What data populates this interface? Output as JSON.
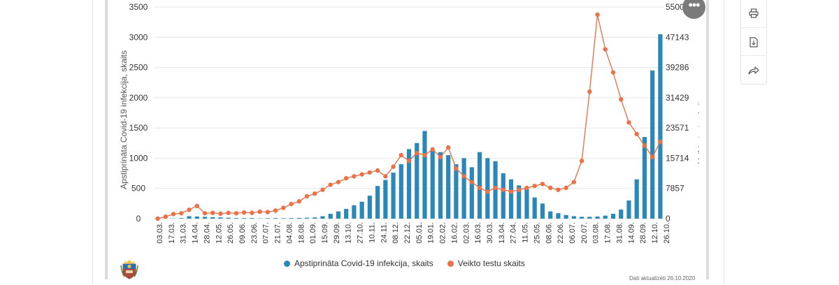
{
  "colors": {
    "bars": "#2b87b8",
    "tests": "#e8734a",
    "grid": "#e6e6e6",
    "axis_text": "#333333"
  },
  "toolbar": {
    "more_icon": "ellipsis-icon",
    "more_label": "•••",
    "items": [
      {
        "name": "print",
        "icon": "printer-icon"
      },
      {
        "name": "download",
        "icon": "download-file-icon"
      },
      {
        "name": "share",
        "icon": "share-arrow-icon"
      }
    ]
  },
  "footer_note": "Dati aktualizēti 26.10.2020",
  "chart_data": {
    "type": "bar+line",
    "title": "",
    "xlabel": "",
    "ylabel_left": "Apstiprināta Covid-19 infekcija, skaits",
    "ylabel_right": "Veikto testu skaits",
    "ylim_left": [
      0,
      3500
    ],
    "ylim_right": [
      0,
      55000
    ],
    "yticks_left": [
      "0",
      "500",
      "1000",
      "1500",
      "2000",
      "2500",
      "3000",
      "3500"
    ],
    "yticks_right": [
      "0",
      "7857",
      "15714",
      "23571",
      "31429",
      "39286",
      "47143",
      "55000"
    ],
    "x_ticks": [
      "03.03.",
      "17.03.",
      "31.03.",
      "14.04.",
      "28.04.",
      "12.05.",
      "26.05.",
      "09.06.",
      "23.06.",
      "07.07.",
      "21.07.",
      "04.08.",
      "18.08.",
      "01.09.",
      "15.09.",
      "29.09.",
      "13.10.",
      "27.10.",
      "10.11.",
      "24.11.",
      "08.12.",
      "22.12.",
      "05.01.",
      "19.01.",
      "02.02.",
      "16.02.",
      "02.03.",
      "16.03.",
      "30.03.",
      "13.04.",
      "27.04.",
      "11.05.",
      "25.05.",
      "08.06.",
      "22.06.",
      "06.07.",
      "20.07.",
      "03.08.",
      "17.08.",
      "31.08.",
      "14.09.",
      "28.09.",
      "12.10.",
      "26.10."
    ],
    "series": [
      {
        "name": "Apstiprināta Covid-19 infekcija, skaits",
        "type": "bar",
        "axis": "left",
        "values": [
          0,
          0,
          5,
          10,
          40,
          35,
          30,
          25,
          20,
          15,
          10,
          10,
          10,
          5,
          8,
          10,
          8,
          10,
          12,
          15,
          20,
          40,
          80,
          120,
          160,
          220,
          280,
          380,
          540,
          640,
          760,
          900,
          1150,
          1250,
          1450,
          1150,
          1100,
          1050,
          900,
          1000,
          850,
          1100,
          1000,
          950,
          750,
          650,
          550,
          500,
          350,
          250,
          120,
          90,
          60,
          40,
          30,
          30,
          35,
          50,
          80,
          150,
          300,
          650,
          1350,
          2450,
          3050
        ]
      },
      {
        "name": "Veikto testu skaits",
        "type": "line",
        "axis": "right",
        "values": [
          0,
          500,
          1200,
          1400,
          2300,
          3300,
          1400,
          1500,
          1300,
          1500,
          1400,
          1600,
          1500,
          1800,
          1700,
          2100,
          2800,
          3800,
          4500,
          5800,
          6500,
          7500,
          8800,
          9500,
          10500,
          11000,
          11500,
          12000,
          12500,
          11000,
          13500,
          16500,
          15000,
          17000,
          16500,
          18000,
          16000,
          18500,
          13000,
          11000,
          9500,
          8000,
          7000,
          8000,
          7500,
          7000,
          7500,
          8000,
          8500,
          9000,
          8000,
          7500,
          8000,
          9500,
          15000,
          33000,
          53000,
          44000,
          38000,
          31000,
          25000,
          22000,
          19000,
          16000,
          20000
        ]
      }
    ]
  },
  "legend": {
    "bars_label": "Apstiprināta Covid-19 infekcija, skaits",
    "tests_label": "Veikto testu skaits"
  }
}
